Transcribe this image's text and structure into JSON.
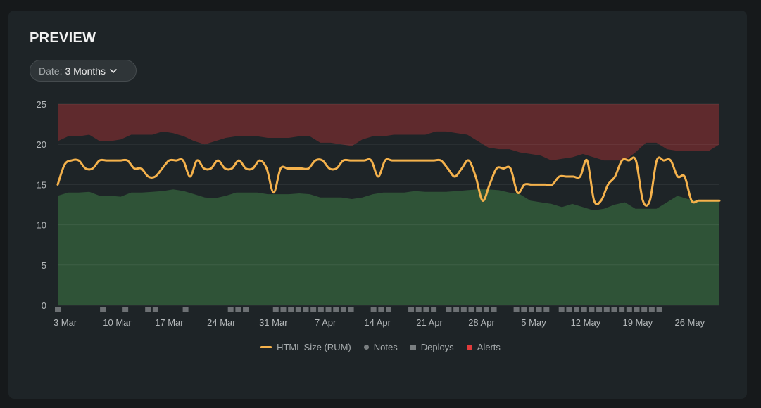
{
  "card": {
    "title": "PREVIEW"
  },
  "date_filter": {
    "label": "Date:",
    "value": "3 Months"
  },
  "chart_data": {
    "type": "line",
    "ylim": [
      0,
      25
    ],
    "y_ticks": [
      "0",
      "5",
      "10",
      "15",
      "20",
      "25"
    ],
    "x_ticks": [
      "3 Mar",
      "10 Mar",
      "17 Mar",
      "24 Mar",
      "31 Mar",
      "7 Apr",
      "14 Apr",
      "21 Apr",
      "28 Apr",
      "5 May",
      "12 May",
      "19 May",
      "26 May"
    ],
    "colors": {
      "line": "#f5b24c",
      "good_band": "#2f5337",
      "alert_band": "#5f2a2d",
      "marker": "#6c7073"
    },
    "x_day_range": [
      "2 Mar",
      "30 May"
    ],
    "series": [
      {
        "name": "HTML Size (RUM)",
        "values": [
          15,
          17.5,
          18,
          18,
          17,
          17,
          18,
          18,
          18,
          18,
          18,
          17,
          17,
          16,
          16,
          17,
          18,
          18,
          18,
          16,
          18,
          17,
          17,
          18,
          17,
          17,
          18,
          17,
          17,
          18,
          17,
          14,
          17,
          17,
          17,
          17,
          17,
          18,
          18,
          17,
          17,
          18,
          18,
          18,
          18,
          18,
          16,
          18,
          18,
          18,
          18,
          18,
          18,
          18,
          18,
          18,
          17,
          16,
          17,
          18,
          16,
          13,
          15,
          17,
          17,
          17,
          14,
          15,
          15,
          15,
          15,
          15,
          16,
          16,
          16,
          16,
          18,
          13,
          13,
          15,
          16,
          18,
          18,
          18,
          13,
          13,
          18,
          18,
          18,
          16,
          16,
          13,
          13,
          13,
          13,
          13
        ]
      }
    ],
    "lower_band": [
      13.6,
      14,
      14,
      14.1,
      13.6,
      13.6,
      13.5,
      14,
      14,
      14.1,
      14.2,
      14.4,
      14.2,
      13.8,
      13.4,
      13.3,
      13.6,
      14,
      14,
      14,
      13.8,
      13.8,
      13.8,
      13.9,
      13.8,
      13.4,
      13.4,
      13.4,
      13.2,
      13.4,
      13.8,
      14,
      14,
      14,
      14.2,
      14.1,
      14.1,
      14.1,
      14.2,
      14.3,
      14.4,
      14.4,
      14.3,
      14,
      13.8,
      13,
      12.8,
      12.6,
      12.2,
      12.6,
      12.2,
      11.8,
      12,
      12.5,
      12.8,
      12,
      12,
      12,
      12.8,
      13.6,
      13.2,
      13,
      13,
      13
    ],
    "upper_band": [
      20.4,
      21,
      21,
      21.2,
      20.4,
      20.4,
      20.6,
      21.2,
      21.2,
      21.2,
      21.6,
      21.4,
      21,
      20.4,
      20,
      20.4,
      20.8,
      21,
      21,
      21,
      20.8,
      20.8,
      20.8,
      21,
      21,
      20.2,
      20.2,
      20,
      19.8,
      20.6,
      21,
      21,
      21.2,
      21.2,
      21.2,
      21.2,
      21.6,
      21.6,
      21.4,
      21.2,
      20.4,
      19.6,
      19.4,
      19.4,
      19,
      18.8,
      18.6,
      18,
      18.2,
      18.4,
      18.8,
      18.4,
      18,
      18,
      18,
      19,
      20.2,
      20.2,
      19.4,
      19.2,
      19.2,
      19.2,
      19.2,
      20
    ],
    "deploys": [
      0,
      6,
      9,
      12,
      13,
      17,
      23,
      24,
      25,
      29,
      30,
      31,
      32,
      33,
      34,
      35,
      36,
      37,
      38,
      39,
      42,
      43,
      44,
      47,
      48,
      49,
      50,
      52,
      53,
      54,
      55,
      56,
      57,
      58,
      61,
      62,
      63,
      64,
      65,
      67,
      68,
      69,
      70,
      71,
      72,
      73,
      74,
      75,
      76,
      77,
      78,
      79,
      80
    ]
  },
  "legend": {
    "items": [
      {
        "label": "HTML Size (RUM)"
      },
      {
        "label": "Notes"
      },
      {
        "label": "Deploys"
      },
      {
        "label": "Alerts"
      }
    ]
  }
}
